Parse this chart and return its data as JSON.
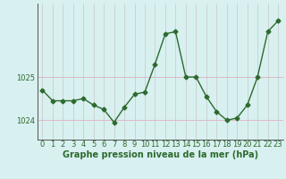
{
  "hours": [
    0,
    1,
    2,
    3,
    4,
    5,
    6,
    7,
    8,
    9,
    10,
    11,
    12,
    13,
    14,
    15,
    16,
    17,
    18,
    19,
    20,
    21,
    22,
    23
  ],
  "pressure": [
    1024.7,
    1024.45,
    1024.45,
    1024.45,
    1024.5,
    1024.35,
    1024.25,
    1023.95,
    1024.3,
    1024.6,
    1024.65,
    1025.3,
    1026.0,
    1026.05,
    1025.0,
    1025.0,
    1024.55,
    1024.2,
    1024.0,
    1024.05,
    1024.35,
    1025.0,
    1026.05,
    1026.3
  ],
  "line_color": "#2d6a2d",
  "marker": "D",
  "markersize": 2.5,
  "bg_color": "#d8f0f0",
  "grid_color_v": "#c8c8c8",
  "grid_color_h": "#e0b8c8",
  "xlabel": "Graphe pression niveau de la mer (hPa)",
  "xlabel_fontsize": 7,
  "ytick_labels": [
    "1024",
    "1025"
  ],
  "ytick_values": [
    1024,
    1025
  ],
  "ylim": [
    1023.55,
    1026.7
  ],
  "xlim": [
    -0.5,
    23.5
  ],
  "line_color_dark": "#2d6a2d",
  "tick_fontsize": 6,
  "linewidth": 1.0
}
